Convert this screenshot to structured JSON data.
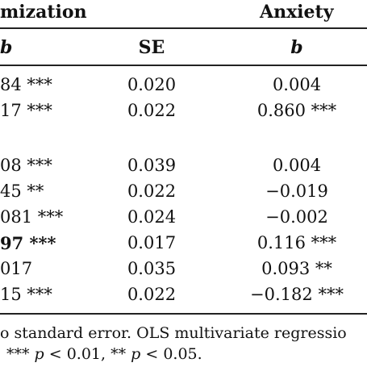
{
  "table": {
    "group_headers": {
      "left": "mization",
      "right": "Anxiety"
    },
    "column_headers": {
      "b_left": "b",
      "se": "SE",
      "b_right": "b"
    },
    "rows": [
      {
        "b_left": "84 ***",
        "se": "0.020",
        "b_right": "0.004"
      },
      {
        "b_left": "17 ***",
        "se": "0.022",
        "b_right": "0.860 ***"
      },
      {
        "b_left": "08 ***",
        "se": "0.039",
        "b_right": "0.004"
      },
      {
        "b_left": "45 **",
        "se": "0.022",
        "b_right": "−0.019"
      },
      {
        "b_left": "081 ***",
        "se": "0.024",
        "b_right": "−0.002"
      },
      {
        "b_left": "97 ***",
        "se": "0.017",
        "b_right": "0.116 ***"
      },
      {
        "b_left": "017",
        "se": "0.035",
        "b_right": "0.093 **"
      },
      {
        "b_left": "15 ***",
        "se": "0.022",
        "b_right": "−0.182 ***"
      }
    ]
  },
  "footnote": {
    "line1": "o standard error. OLS multivariate regressio",
    "line2_prefix": "*** ",
    "line2_p1": "p",
    "line2_mid": " < 0.01, ** ",
    "line2_p2": "p",
    "line2_suffix": " < 0.05."
  }
}
